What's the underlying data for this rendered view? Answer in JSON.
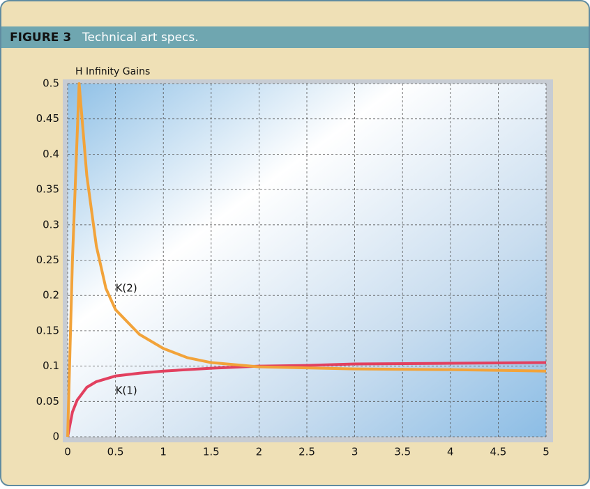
{
  "header": {
    "label": "FIGURE 3",
    "caption": "Technical art specs."
  },
  "chart_data": {
    "type": "line",
    "ylabel": "H Infinity Gains",
    "xlim": [
      0,
      5
    ],
    "xticks": [
      0,
      0.5,
      1,
      1.5,
      2,
      2.5,
      3,
      3.5,
      4,
      4.5,
      5
    ],
    "ylim": [
      0,
      0.5
    ],
    "yticks": [
      0,
      0.05,
      0.1,
      0.15,
      0.2,
      0.25,
      0.3,
      0.35,
      0.4,
      0.45,
      0.5
    ],
    "grid": true,
    "series": [
      {
        "name": "K(1)",
        "color": "#e2405f",
        "x": [
          0,
          0.05,
          0.1,
          0.2,
          0.3,
          0.5,
          0.75,
          1,
          1.5,
          2,
          2.5,
          3,
          4,
          5
        ],
        "values": [
          0,
          0.035,
          0.052,
          0.07,
          0.078,
          0.086,
          0.09,
          0.093,
          0.097,
          0.1,
          0.101,
          0.103,
          0.104,
          0.105
        ]
      },
      {
        "name": "K(2)",
        "color": "#f2a33a",
        "x": [
          0,
          0.05,
          0.12,
          0.2,
          0.3,
          0.4,
          0.5,
          0.75,
          1,
          1.25,
          1.5,
          2,
          3,
          4,
          5
        ],
        "values": [
          0,
          0.25,
          0.5,
          0.37,
          0.27,
          0.21,
          0.18,
          0.145,
          0.125,
          0.112,
          0.105,
          0.099,
          0.096,
          0.095,
          0.093
        ]
      }
    ],
    "annotations": [
      {
        "text": "K(2)",
        "x": 0.5,
        "y": 0.21
      },
      {
        "text": "K(1)",
        "x": 0.5,
        "y": 0.065
      }
    ]
  }
}
